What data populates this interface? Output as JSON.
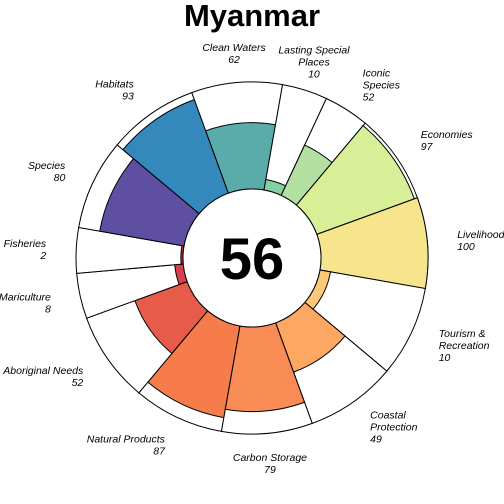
{
  "title": "Myanmar",
  "chart_data": {
    "type": "flower",
    "title": "Myanmar",
    "overall_score": "56",
    "max": 100,
    "goals": [
      {
        "label": [
          "Natural Products"
        ],
        "value": 87,
        "weight": 1,
        "color": "#F67C4B"
      },
      {
        "label": [
          "Aboriginal Needs"
        ],
        "value": 52,
        "weight": 1,
        "color": "#E75B4A"
      },
      {
        "label": [
          "Mariculture"
        ],
        "value": 8,
        "weight": 0.5,
        "color": "#D9404E"
      },
      {
        "label": [
          "Fisheries"
        ],
        "value": 2,
        "weight": 0.5,
        "color": "#C8244A"
      },
      {
        "label": [
          "Species"
        ],
        "value": 80,
        "weight": 1,
        "color": "#5E4FA2"
      },
      {
        "label": [
          "Habitats"
        ],
        "value": 93,
        "weight": 1,
        "color": "#3488BC"
      },
      {
        "label": [
          "Clean Waters"
        ],
        "value": 62,
        "weight": 1,
        "color": "#5AACAA"
      },
      {
        "label": [
          "Lasting Special",
          "Places"
        ],
        "value": 10,
        "weight": 0.5,
        "color": "#86CFA5"
      },
      {
        "label": [
          "Iconic",
          "Species"
        ],
        "value": 52,
        "weight": 0.5,
        "color": "#B3E0A0"
      },
      {
        "label": [
          "Economies"
        ],
        "value": 97,
        "weight": 1,
        "color": "#D9EF97"
      },
      {
        "label": [
          "Livelihoods"
        ],
        "value": 100,
        "weight": 1,
        "color": "#F7E58E"
      },
      {
        "label": [
          "Tourism &",
          "Recreation"
        ],
        "value": 10,
        "weight": 1,
        "color": "#FDC877"
      },
      {
        "label": [
          "Coastal",
          "Protection"
        ],
        "value": 49,
        "weight": 1,
        "color": "#FCA862"
      },
      {
        "label": [
          "Carbon Storage"
        ],
        "value": 79,
        "weight": 1,
        "color": "#F98C54"
      }
    ]
  }
}
